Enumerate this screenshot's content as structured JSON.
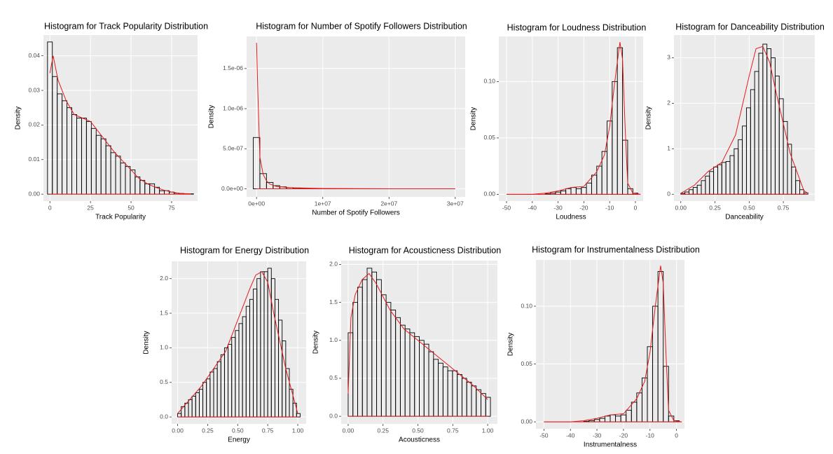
{
  "chart_data": [
    {
      "type": "histogram",
      "title": "Histogram for Track Popularity Distribution",
      "xlabel": "Track Popularity",
      "ylabel": "Density",
      "bins": [
        -1.5,
        1.5,
        4.5,
        7.5,
        10.5,
        13.5,
        16.5,
        19.5,
        22.5,
        25.5,
        28.5,
        31.5,
        34.5,
        37.5,
        40.5,
        43.5,
        46.5,
        49.5,
        52.5,
        55.5,
        58.5,
        61.5,
        64.5,
        67.5,
        70.5,
        73.5,
        76.5,
        79.5,
        82.5,
        85.5,
        88.5
      ],
      "values": [
        0.044,
        0.034,
        0.029,
        0.027,
        0.025,
        0.023,
        0.022,
        0.022,
        0.021,
        0.019,
        0.017,
        0.016,
        0.014,
        0.012,
        0.011,
        0.009,
        0.008,
        0.007,
        0.005,
        0.004,
        0.003,
        0.003,
        0.002,
        0.001,
        0.001,
        0.0006,
        0.0003,
        0.0002,
        0.0001,
        0.0001
      ],
      "curve": {
        "color": "#e41a1c",
        "x": [
          0,
          2,
          5,
          10,
          15,
          20,
          25,
          30,
          35,
          40,
          45,
          50,
          55,
          60,
          65,
          70,
          75,
          80,
          87
        ],
        "values": [
          0.035,
          0.04,
          0.033,
          0.027,
          0.023,
          0.022,
          0.021,
          0.018,
          0.015,
          0.012,
          0.0095,
          0.007,
          0.0045,
          0.003,
          0.002,
          0.0012,
          0.0006,
          0.0002,
          0.0001
        ]
      },
      "xlim": [
        -4,
        91
      ],
      "xticks": [
        0,
        25,
        50,
        75
      ],
      "ylim": [
        -0.002,
        0.046
      ],
      "yticks": [
        {
          "value": 0,
          "label": "0.00"
        },
        0.01,
        0.02,
        0.03,
        0.04
      ],
      "grid": true
    },
    {
      "type": "histogram",
      "title": "Histogram for Number of Spotify Followers Distribution",
      "xlabel": "Number of Spotify Followers",
      "ylabel": "Density",
      "bins": [
        -500000,
        500000,
        1500000,
        2500000,
        3500000,
        4500000,
        5500000,
        6500000,
        7500000,
        8500000,
        9500000,
        10500000,
        11500000,
        12500000,
        13500000,
        14500000,
        15500000,
        16500000,
        17500000,
        18500000,
        19500000,
        20500000,
        21500000,
        22500000,
        23500000,
        24500000,
        25500000,
        26500000,
        27500000,
        28500000,
        29500000
      ],
      "values": [
        6.4e-07,
        1.9e-07,
        8e-08,
        4e-08,
        2.5e-08,
        1.5e-08,
        1e-08,
        7e-09,
        5e-09,
        4e-09,
        3e-09,
        2.5e-09,
        2e-09,
        1.5e-09,
        1.2e-09,
        1e-09,
        8e-10,
        6e-10,
        5e-10,
        4e-10,
        3e-10,
        2.5e-10,
        2e-10,
        1.5e-10,
        1e-10,
        8e-11,
        6e-11,
        4e-11,
        2e-11,
        1e-11
      ],
      "curve": {
        "color": "#e41a1c",
        "x": [
          0,
          200000,
          500000,
          1000000,
          1500000,
          2000000,
          3000000,
          5000000,
          10000000,
          20000000,
          30000000
        ],
        "values": [
          1.82e-06,
          1.2e-06,
          4e-07,
          1.8e-07,
          1e-07,
          6e-08,
          3e-08,
          1.5e-08,
          5e-09,
          1e-09,
          0
        ]
      },
      "xlim": [
        -1500000,
        31500000
      ],
      "xticks": [
        {
          "value": 0,
          "label": "0e+00"
        },
        {
          "value": 10000000,
          "label": "1e+07"
        },
        {
          "value": 20000000,
          "label": "2e+07"
        },
        {
          "value": 30000000,
          "label": "3e+07"
        }
      ],
      "ylim": [
        -1e-07,
        1.9e-06
      ],
      "yticks": [
        {
          "value": 0,
          "label": "0.0e+00"
        },
        {
          "value": 5e-07,
          "label": "5.0e-07"
        },
        {
          "value": 1e-06,
          "label": "1.0e-06"
        },
        {
          "value": 1.5e-06,
          "label": "1.5e-06"
        }
      ],
      "grid": true
    },
    {
      "type": "histogram",
      "title": "Histogram for Loudness Distribution",
      "xlabel": "Loudness",
      "ylabel": "Density",
      "bins": [
        -49,
        -47,
        -45,
        -43,
        -41,
        -39,
        -37,
        -35,
        -33,
        -31,
        -29,
        -27,
        -25,
        -23,
        -21,
        -19,
        -17,
        -15,
        -13,
        -11,
        -9,
        -7,
        -5,
        -3,
        -1,
        1
      ],
      "values": [
        0,
        0,
        0,
        0,
        0,
        0,
        0,
        0.0005,
        0.001,
        0.002,
        0.003,
        0.005,
        0.006,
        0.005,
        0.006,
        0.01,
        0.017,
        0.025,
        0.038,
        0.065,
        0.1,
        0.13,
        0.048,
        0.005,
        0.001
      ],
      "curve": {
        "color": "#e41a1c",
        "x": [
          -50,
          -40,
          -35,
          -30,
          -25,
          -20,
          -15,
          -12,
          -10,
          -8,
          -6,
          -5,
          -4,
          -3,
          -1,
          2
        ],
        "values": [
          0,
          0,
          0.001,
          0.003,
          0.006,
          0.007,
          0.02,
          0.035,
          0.06,
          0.1,
          0.135,
          0.12,
          0.06,
          0.01,
          0.001,
          0
        ]
      },
      "xlim": [
        -53,
        3
      ],
      "xticks": [
        -50,
        -40,
        -30,
        -20,
        -10,
        0
      ],
      "ylim": [
        -0.006,
        0.14
      ],
      "yticks": [
        {
          "value": 0,
          "label": "0.00"
        },
        0.05,
        {
          "value": 0.1,
          "label": "0.10"
        }
      ],
      "grid": true
    },
    {
      "type": "histogram",
      "title": "Histogram for Danceability Distribution",
      "xlabel": "Danceability",
      "ylabel": "Density",
      "bins": [
        0,
        0.03,
        0.06,
        0.09,
        0.12,
        0.15,
        0.18,
        0.21,
        0.24,
        0.27,
        0.3,
        0.33,
        0.36,
        0.39,
        0.42,
        0.45,
        0.48,
        0.51,
        0.54,
        0.57,
        0.6,
        0.63,
        0.66,
        0.69,
        0.72,
        0.75,
        0.78,
        0.81,
        0.84,
        0.87,
        0.9,
        0.93
      ],
      "values": [
        0.02,
        0.05,
        0.1,
        0.15,
        0.2,
        0.3,
        0.4,
        0.5,
        0.6,
        0.65,
        0.7,
        0.72,
        0.85,
        1.0,
        1.2,
        1.5,
        1.9,
        2.3,
        2.7,
        3.1,
        3.3,
        3.2,
        3.0,
        2.6,
        2.1,
        1.6,
        1.1,
        0.6,
        0.3,
        0.1,
        0.03
      ],
      "curve": {
        "color": "#e41a1c",
        "x": [
          0,
          0.1,
          0.2,
          0.3,
          0.4,
          0.5,
          0.55,
          0.6,
          0.65,
          0.7,
          0.8,
          0.9,
          0.93
        ],
        "values": [
          0.02,
          0.2,
          0.5,
          0.7,
          1.3,
          2.6,
          3.2,
          3.25,
          2.9,
          2.2,
          0.9,
          0.08,
          0.02
        ]
      },
      "xlim": [
        -0.05,
        0.98
      ],
      "xticks": [
        {
          "value": 0,
          "label": "0.00"
        },
        0.25,
        {
          "value": 0.5,
          "label": "0.50"
        },
        0.75
      ],
      "ylim": [
        -0.15,
        3.5
      ],
      "yticks": [
        0,
        1,
        2,
        3
      ],
      "grid": true
    },
    {
      "type": "histogram",
      "title": "Histogram for Energy Distribution",
      "xlabel": "Energy",
      "ylabel": "Density",
      "bins": [
        0,
        0.03,
        0.06,
        0.09,
        0.12,
        0.15,
        0.18,
        0.21,
        0.24,
        0.27,
        0.3,
        0.33,
        0.36,
        0.39,
        0.42,
        0.45,
        0.48,
        0.51,
        0.54,
        0.57,
        0.6,
        0.63,
        0.66,
        0.69,
        0.72,
        0.75,
        0.78,
        0.81,
        0.84,
        0.87,
        0.9,
        0.93,
        0.96,
        0.99,
        1.02
      ],
      "values": [
        0.05,
        0.15,
        0.2,
        0.25,
        0.3,
        0.35,
        0.4,
        0.5,
        0.55,
        0.65,
        0.7,
        0.8,
        0.9,
        1.0,
        1.05,
        1.15,
        1.25,
        1.35,
        1.45,
        1.6,
        1.7,
        1.85,
        2.0,
        2.1,
        2.1,
        2.15,
        2.0,
        1.7,
        1.4,
        1.1,
        0.7,
        0.4,
        0.2,
        0.05
      ],
      "curve": {
        "color": "#e41a1c",
        "x": [
          0,
          0.1,
          0.2,
          0.3,
          0.4,
          0.5,
          0.6,
          0.65,
          0.7,
          0.75,
          0.8,
          0.9,
          1.0
        ],
        "values": [
          0.05,
          0.25,
          0.45,
          0.7,
          0.95,
          1.4,
          1.85,
          2.05,
          2.1,
          1.95,
          1.5,
          0.7,
          0.05
        ]
      },
      "xlim": [
        -0.05,
        1.07
      ],
      "xticks": [
        {
          "value": 0,
          "label": "0.00"
        },
        0.25,
        {
          "value": 0.5,
          "label": "0.50"
        },
        0.75,
        {
          "value": 1,
          "label": "1.00"
        }
      ],
      "ylim": [
        -0.1,
        2.25
      ],
      "yticks": [
        {
          "value": 0,
          "label": "0.0"
        },
        0.5,
        {
          "value": 1,
          "label": "1.0"
        },
        1.5,
        {
          "value": 2,
          "label": "2.0"
        }
      ],
      "grid": true
    },
    {
      "type": "histogram",
      "title": "Histogram for Acousticness Distribution",
      "xlabel": "Acousticness",
      "ylabel": "Density",
      "bins": [
        0,
        0.034,
        0.068,
        0.102,
        0.136,
        0.17,
        0.204,
        0.238,
        0.272,
        0.306,
        0.34,
        0.374,
        0.408,
        0.442,
        0.476,
        0.51,
        0.544,
        0.578,
        0.612,
        0.646,
        0.68,
        0.714,
        0.748,
        0.782,
        0.816,
        0.85,
        0.884,
        0.918,
        0.952,
        0.986,
        1.02
      ],
      "values": [
        1.1,
        1.5,
        1.7,
        1.8,
        1.95,
        1.9,
        1.8,
        1.6,
        1.5,
        1.4,
        1.3,
        1.2,
        1.15,
        1.1,
        1.05,
        1.0,
        0.95,
        0.85,
        0.75,
        0.7,
        0.65,
        0.6,
        0.6,
        0.55,
        0.5,
        0.45,
        0.4,
        0.35,
        0.3,
        0.25
      ],
      "curve": {
        "color": "#e41a1c",
        "x": [
          0,
          0.02,
          0.05,
          0.1,
          0.15,
          0.2,
          0.3,
          0.4,
          0.5,
          0.6,
          0.7,
          0.8,
          0.9,
          1.0
        ],
        "values": [
          0.3,
          1.3,
          1.6,
          1.8,
          1.88,
          1.75,
          1.4,
          1.15,
          1.0,
          0.85,
          0.7,
          0.55,
          0.4,
          0.22
        ]
      },
      "xlim": [
        -0.05,
        1.07
      ],
      "xticks": [
        {
          "value": 0,
          "label": "0.00"
        },
        0.25,
        {
          "value": 0.5,
          "label": "0.50"
        },
        0.75,
        {
          "value": 1,
          "label": "1.00"
        }
      ],
      "ylim": [
        -0.1,
        2.05
      ],
      "yticks": [
        {
          "value": 0,
          "label": "0.0"
        },
        0.5,
        {
          "value": 1,
          "label": "1.0"
        },
        1.5,
        {
          "value": 2,
          "label": "2.0"
        }
      ],
      "grid": true
    },
    {
      "type": "histogram",
      "title": "Histogram for Instrumentalness Distribution",
      "xlabel": "Instrumentalness",
      "ylabel": "Density",
      "bins": [
        -49,
        -47,
        -45,
        -43,
        -41,
        -39,
        -37,
        -35,
        -33,
        -31,
        -29,
        -27,
        -25,
        -23,
        -21,
        -19,
        -17,
        -15,
        -13,
        -11,
        -9,
        -7,
        -5,
        -3,
        -1,
        1
      ],
      "values": [
        0,
        0,
        0,
        0,
        0,
        0,
        0,
        0.0005,
        0.001,
        0.002,
        0.003,
        0.005,
        0.006,
        0.005,
        0.006,
        0.01,
        0.017,
        0.025,
        0.038,
        0.065,
        0.1,
        0.13,
        0.048,
        0.005,
        0.001
      ],
      "curve": {
        "color": "#e41a1c",
        "x": [
          -50,
          -40,
          -35,
          -30,
          -25,
          -20,
          -15,
          -12,
          -10,
          -8,
          -6,
          -5,
          -4,
          -3,
          -1,
          2
        ],
        "values": [
          0,
          0,
          0.001,
          0.003,
          0.006,
          0.007,
          0.02,
          0.035,
          0.06,
          0.1,
          0.135,
          0.12,
          0.06,
          0.01,
          0.001,
          0
        ]
      },
      "xlim": [
        -53,
        3
      ],
      "xticks": [
        -50,
        -40,
        -30,
        -20,
        -10,
        0
      ],
      "ylim": [
        -0.006,
        0.14
      ],
      "yticks": [
        {
          "value": 0,
          "label": "0.00"
        },
        0.05,
        {
          "value": 0.1,
          "label": "0.10"
        }
      ],
      "grid": true
    }
  ]
}
